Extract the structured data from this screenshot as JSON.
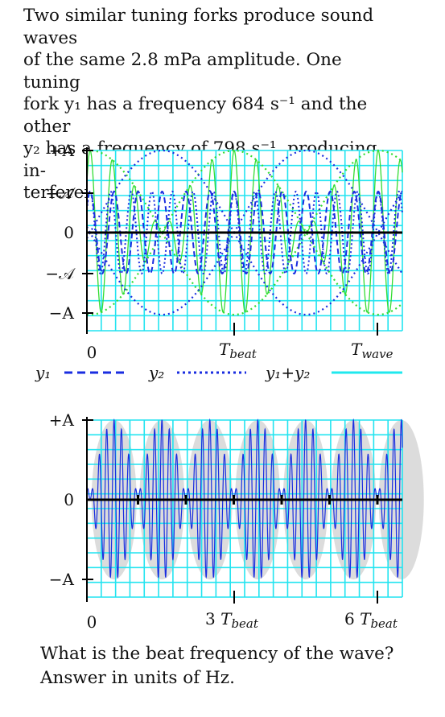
{
  "problem": {
    "line1": "Two similar tuning forks produce sound waves",
    "line2": "of the same 2.8 mPa amplitude.  One tuning",
    "line3": "fork y₁ has a frequency 684 s⁻¹ and the other",
    "line4": "y₂ has a frequency of 798 s⁻¹, producing in-",
    "line5": "terference."
  },
  "top_figure": {
    "y_ticks": [
      "+A",
      "+𝒜",
      "0",
      "−𝒜",
      "−A"
    ],
    "x_ticks": [
      "0",
      "T_beat",
      "T_wave"
    ],
    "x_tick_main": [
      "T",
      "T"
    ],
    "x_tick_sub": [
      "beat",
      "wave"
    ],
    "legend": [
      {
        "label": "y₁",
        "style": "dashed",
        "color": "#1a2de0"
      },
      {
        "label": "y₂",
        "style": "dotted",
        "color": "#1a2de0"
      },
      {
        "label": "y₁+y₂",
        "style": "solid",
        "color": "#20e8ee"
      }
    ]
  },
  "bottom_figure": {
    "y_ticks": [
      "+A",
      "0",
      "−A"
    ],
    "x_ticks": [
      "0",
      "3 T_beat",
      "6 T_beat"
    ],
    "x_tick_num": [
      "3",
      "6"
    ],
    "x_tick_main": "T",
    "x_tick_sub": "beat"
  },
  "colors": {
    "grid": "#22e4f0",
    "wave_blue": "#1a2de0",
    "sum_green": "#33dd33",
    "envelope_fill": "#dcdcdc",
    "axis": "#000000"
  },
  "question": {
    "line1": "What is the beat frequency of the wave?",
    "line2": "Answer in units of  Hz."
  }
}
